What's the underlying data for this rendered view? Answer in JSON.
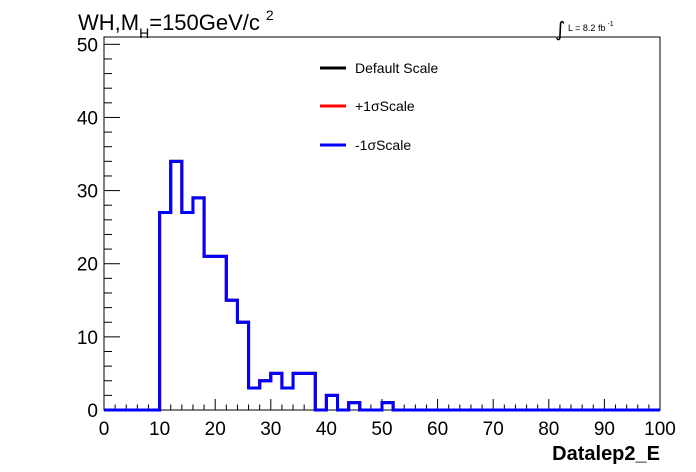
{
  "chart_data": {
    "type": "line",
    "title_main": "WH,M",
    "title_sub": "H",
    "title_value": "=150GeV/c",
    "title_sup": "2",
    "lumi_integral": "∫",
    "lumi_text": "L = 8.2 fb",
    "lumi_sup": "-1",
    "xlabel": "Datalep2_E",
    "ylabel": "",
    "xlim": [
      0,
      100
    ],
    "ylim": [
      0,
      51
    ],
    "xticks": [
      0,
      10,
      20,
      30,
      40,
      50,
      60,
      70,
      80,
      90,
      100
    ],
    "yticks": [
      0,
      10,
      20,
      30,
      40,
      50
    ],
    "grid": false,
    "legend_position": "top-center",
    "bin_width": 2,
    "bin_edges_start": 0,
    "series": [
      {
        "name": "Default Scale",
        "color": "#000000",
        "values": [
          0,
          0,
          0,
          0,
          0,
          27,
          34,
          27,
          29,
          21,
          21,
          15,
          12,
          3,
          4,
          5,
          3,
          5,
          5,
          0,
          2,
          0,
          1,
          0,
          0,
          1,
          0,
          0,
          0,
          0,
          0,
          0,
          0,
          0,
          0,
          0,
          0,
          0,
          0,
          0,
          0,
          0,
          0,
          0,
          0,
          0,
          0,
          0,
          0,
          0
        ]
      },
      {
        "name": "+1σScale",
        "color": "#ff0000",
        "values": [
          0,
          0,
          0,
          0,
          0,
          27,
          34,
          27,
          29,
          21,
          21,
          15,
          12,
          3,
          4,
          5,
          3,
          5,
          5,
          0,
          2,
          0,
          1,
          0,
          0,
          1,
          0,
          0,
          0,
          0,
          0,
          0,
          0,
          0,
          0,
          0,
          0,
          0,
          0,
          0,
          0,
          0,
          0,
          0,
          0,
          0,
          0,
          0,
          0,
          0
        ]
      },
      {
        "name": "-1σScale",
        "color": "#0000ff",
        "values": [
          0,
          0,
          0,
          0,
          0,
          27,
          34,
          27,
          29,
          21,
          21,
          15,
          12,
          3,
          4,
          5,
          3,
          5,
          5,
          0,
          2,
          0,
          1,
          0,
          0,
          1,
          0,
          0,
          0,
          0,
          0,
          0,
          0,
          0,
          0,
          0,
          0,
          0,
          0,
          0,
          0,
          0,
          0,
          0,
          0,
          0,
          0,
          0,
          0,
          0
        ]
      }
    ]
  }
}
